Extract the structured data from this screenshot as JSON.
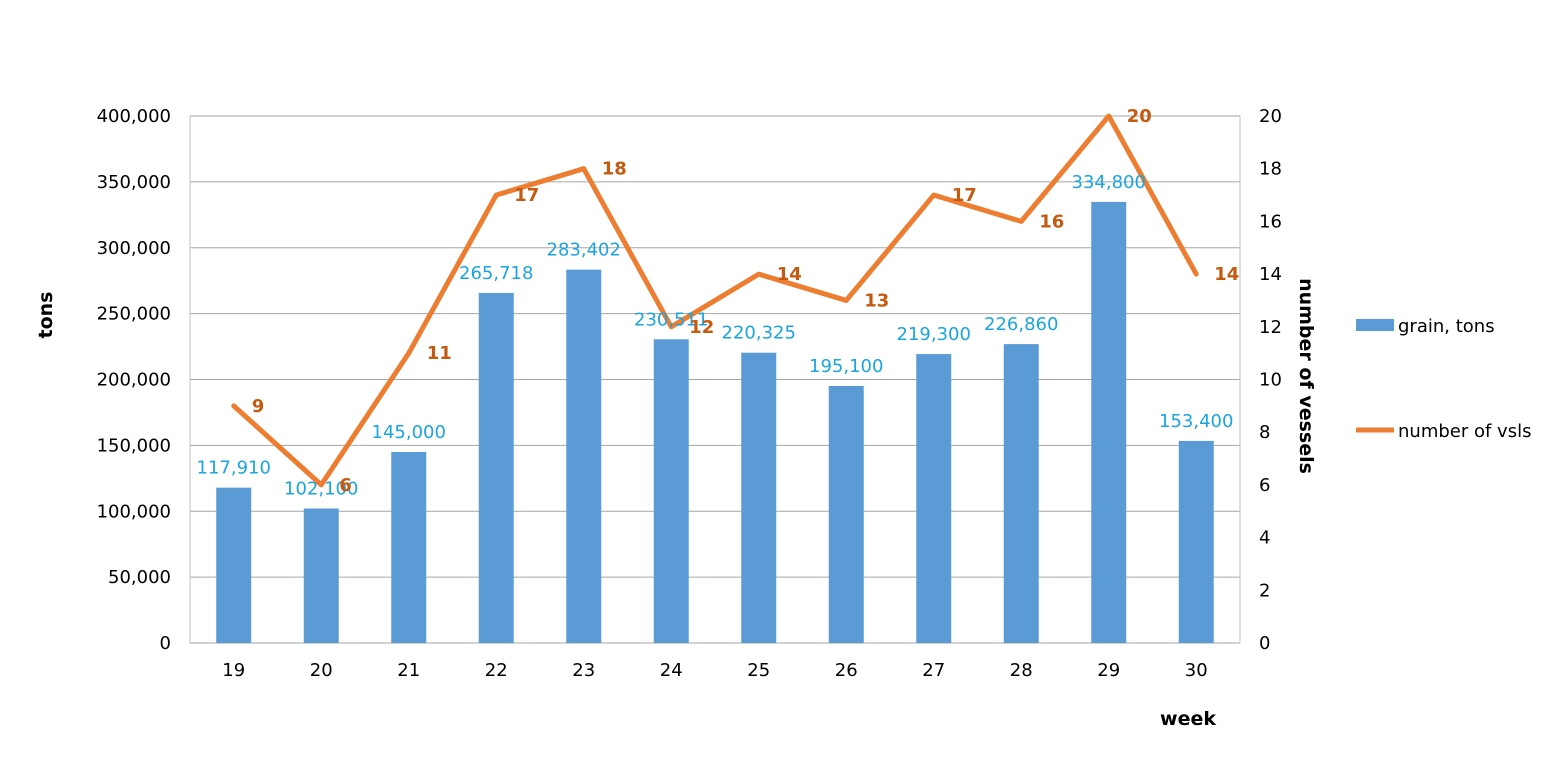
{
  "chart_data": {
    "type": "bar",
    "x": [
      19,
      20,
      21,
      22,
      23,
      24,
      25,
      26,
      27,
      28,
      29,
      30
    ],
    "xlabel": "week",
    "ylabel": "tons",
    "y2label": "number of vessels",
    "ylim": [
      0,
      400000
    ],
    "y2lim": [
      0,
      20
    ],
    "y_ticks": [
      "0",
      "50,000",
      "100,000",
      "150,000",
      "200,000",
      "250,000",
      "300,000",
      "350,000",
      "400,000"
    ],
    "y2_ticks": [
      "0",
      "2",
      "4",
      "6",
      "8",
      "10",
      "12",
      "14",
      "16",
      "18",
      "20"
    ],
    "grid": true,
    "legend_position": "right",
    "series": [
      {
        "name": "grain, tons",
        "type": "bar",
        "axis": "left",
        "color": "#5b9bd5",
        "label_color": "#1aa5e0",
        "values": [
          117910,
          102100,
          145000,
          265718,
          283402,
          230511,
          220325,
          195100,
          219300,
          226860,
          334800,
          153400
        ],
        "labels": [
          "117,910",
          "102,100",
          "145,000",
          "265,718",
          "283,402",
          "230,511",
          "220,325",
          "195,100",
          "219,300",
          "226,860",
          "334,800",
          "153,400"
        ]
      },
      {
        "name": "number of vsls",
        "type": "line",
        "axis": "right",
        "color": "#ed7d31",
        "label_color": "#c55a11",
        "values": [
          9,
          6,
          11,
          17,
          18,
          12,
          14,
          13,
          17,
          16,
          20,
          14
        ],
        "labels": [
          "9",
          "6",
          "11",
          "17",
          "18",
          "12",
          "14",
          "13",
          "17",
          "16",
          "20",
          "14"
        ]
      }
    ]
  }
}
